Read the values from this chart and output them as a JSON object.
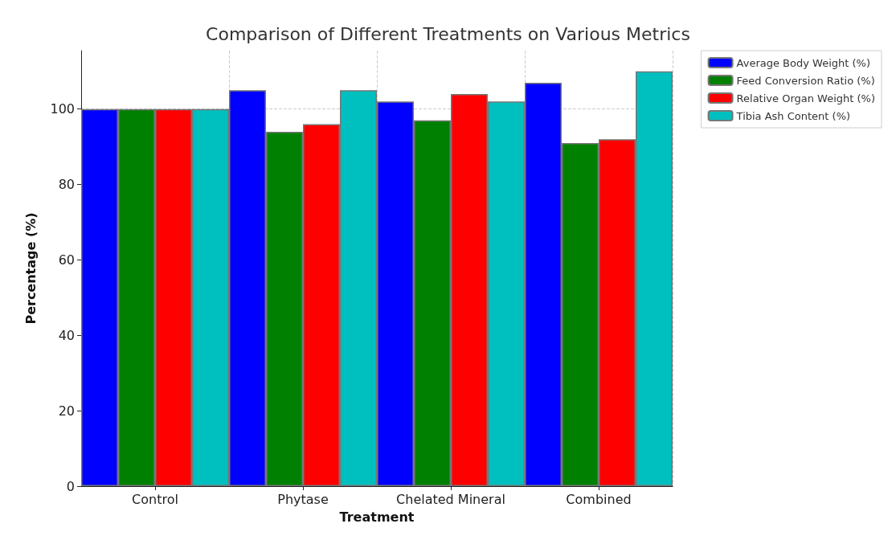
{
  "chart_data": {
    "type": "bar",
    "title": "Comparison of Different Treatments on Various Metrics",
    "xlabel": "Treatment",
    "ylabel": "Percentage (%)",
    "categories": [
      "Control",
      "Phytase",
      "Chelated Mineral",
      "Combined"
    ],
    "series": [
      {
        "name": "Average Body Weight (%)",
        "color": "#0000ff",
        "values": [
          100,
          105,
          102,
          107
        ]
      },
      {
        "name": "Feed Conversion Ratio (%)",
        "color": "#008000",
        "values": [
          100,
          94,
          97,
          91
        ]
      },
      {
        "name": "Relative Organ Weight (%)",
        "color": "#ff0000",
        "values": [
          100,
          96,
          104,
          92
        ]
      },
      {
        "name": "Tibia Ash Content (%)",
        "color": "#00bfbf",
        "values": [
          100,
          105,
          102,
          110
        ]
      }
    ],
    "ylim": [
      0,
      115.5
    ],
    "yticks": [
      0,
      20,
      40,
      60,
      80,
      100
    ],
    "grid": true,
    "legend": "top right"
  }
}
